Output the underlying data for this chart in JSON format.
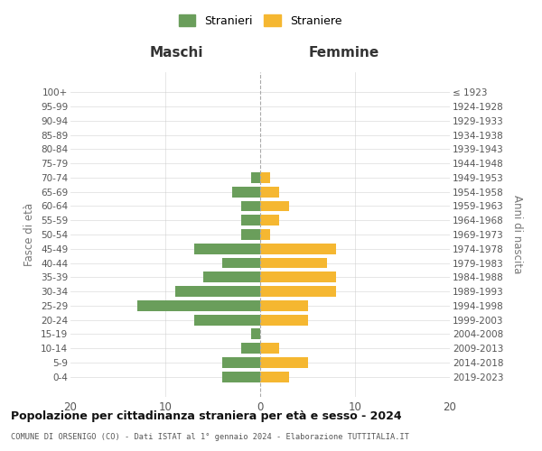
{
  "age_groups": [
    "0-4",
    "5-9",
    "10-14",
    "15-19",
    "20-24",
    "25-29",
    "30-34",
    "35-39",
    "40-44",
    "45-49",
    "50-54",
    "55-59",
    "60-64",
    "65-69",
    "70-74",
    "75-79",
    "80-84",
    "85-89",
    "90-94",
    "95-99",
    "100+"
  ],
  "birth_years": [
    "2019-2023",
    "2014-2018",
    "2009-2013",
    "2004-2008",
    "1999-2003",
    "1994-1998",
    "1989-1993",
    "1984-1988",
    "1979-1983",
    "1974-1978",
    "1969-1973",
    "1964-1968",
    "1959-1963",
    "1954-1958",
    "1949-1953",
    "1944-1948",
    "1939-1943",
    "1934-1938",
    "1929-1933",
    "1924-1928",
    "≤ 1923"
  ],
  "maschi": [
    4,
    4,
    2,
    1,
    7,
    13,
    9,
    6,
    4,
    7,
    2,
    2,
    2,
    3,
    1,
    0,
    0,
    0,
    0,
    0,
    0
  ],
  "femmine": [
    3,
    5,
    2,
    0,
    5,
    5,
    8,
    8,
    7,
    8,
    1,
    2,
    3,
    2,
    1,
    0,
    0,
    0,
    0,
    0,
    0
  ],
  "color_maschi": "#6a9e5b",
  "color_femmine": "#f5b731",
  "title_main": "Popolazione per cittadinanza straniera per età e sesso - 2024",
  "subtitle": "COMUNE DI ORSENIGO (CO) - Dati ISTAT al 1° gennaio 2024 - Elaborazione TUTTITALIA.IT",
  "xlabel_left": "Maschi",
  "xlabel_right": "Femmine",
  "ylabel_left": "Fasce di età",
  "ylabel_right": "Anni di nascita",
  "legend_maschi": "Stranieri",
  "legend_femmine": "Straniere",
  "xlim": 20,
  "background_color": "#ffffff",
  "grid_color": "#cccccc"
}
